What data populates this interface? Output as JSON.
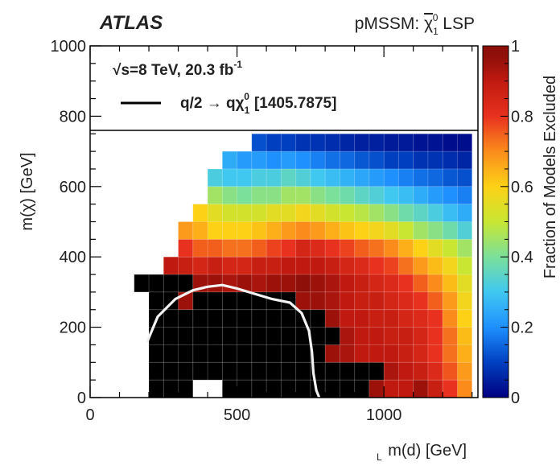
{
  "header": {
    "experiment": "ATLAS",
    "model_prefix": "pMSSM: ",
    "model_particle": "χ",
    "model_sup": "0",
    "model_sub": "1",
    "model_suffix": " LSP"
  },
  "legend": {
    "energy_line_pre": "s=8 TeV, 20.3 fb",
    "energy_line_sup": "-1",
    "curve_label": "q/2 → qχ",
    "curve_label_sup": "0",
    "curve_label_sub": "1",
    "curve_ref": "[1405.7875]"
  },
  "chart_data": {
    "type": "heatmap",
    "xlabel": "m(d) [GeV]",
    "xlabel_sub": "L",
    "ylabel": "m(χ) [GeV]",
    "ylabel_sup": "0",
    "ylabel_sub": "1",
    "zlabel": "Fraction of  Models Excluded",
    "xlim": [
      0,
      1320
    ],
    "ylim": [
      0,
      1000
    ],
    "zlim": [
      0,
      1
    ],
    "x_ticks": [
      0,
      500,
      1000
    ],
    "y_ticks": [
      0,
      200,
      400,
      600,
      800,
      1000
    ],
    "z_ticks": [
      0,
      0.2,
      0.4,
      0.6,
      0.8,
      1
    ],
    "x_bin_edges": [
      0,
      50,
      100,
      150,
      200,
      250,
      300,
      350,
      400,
      450,
      500,
      550,
      600,
      650,
      700,
      750,
      800,
      850,
      900,
      950,
      1000,
      1050,
      1100,
      1150,
      1200,
      1250,
      1300
    ],
    "y_bin_edges": [
      0,
      50,
      100,
      150,
      200,
      250,
      300,
      350,
      400,
      450,
      500,
      550,
      600,
      650,
      700,
      750
    ],
    "grid": true,
    "colormap": [
      "#000080",
      "#0040c0",
      "#1e90ff",
      "#40c8f0",
      "#7be09a",
      "#c8e632",
      "#fcd116",
      "#fb8c1c",
      "#e8311e",
      "#c01a10",
      "#780a06"
    ],
    "z": [
      [
        null,
        null,
        null,
        null,
        1,
        1,
        1,
        null,
        null,
        1,
        1,
        1,
        1,
        1,
        1,
        1,
        1,
        1,
        1,
        0.95,
        0.9,
        0.9,
        0.95,
        0.88,
        0.8,
        0.7
      ],
      [
        null,
        null,
        null,
        null,
        1,
        1,
        1,
        1,
        1,
        1,
        1,
        1,
        1,
        1,
        1,
        1,
        1,
        1,
        1,
        1,
        0.93,
        0.9,
        0.88,
        0.83,
        0.76,
        0.68
      ],
      [
        null,
        null,
        null,
        null,
        1,
        1,
        1,
        1,
        1,
        1,
        1,
        1,
        1,
        1,
        1,
        1,
        0.95,
        0.93,
        0.9,
        0.9,
        0.9,
        0.88,
        0.85,
        0.8,
        0.73,
        0.65
      ],
      [
        null,
        null,
        null,
        null,
        1,
        1,
        1,
        1,
        1,
        1,
        1,
        1,
        1,
        1,
        1,
        1,
        1,
        0.93,
        0.9,
        0.9,
        0.88,
        0.88,
        0.85,
        0.8,
        0.73,
        0.63
      ],
      [
        null,
        null,
        null,
        null,
        1,
        1,
        1,
        1,
        1,
        1,
        1,
        1,
        1,
        1,
        1,
        1,
        0.95,
        0.9,
        0.9,
        0.88,
        0.88,
        0.85,
        0.83,
        0.8,
        0.7,
        0.6
      ],
      [
        null,
        null,
        null,
        null,
        1,
        1,
        0.95,
        1,
        1,
        1,
        1,
        1,
        1,
        1,
        0.95,
        0.95,
        0.93,
        0.9,
        0.88,
        0.88,
        0.85,
        0.83,
        0.8,
        0.75,
        0.68,
        0.58
      ],
      [
        null,
        null,
        null,
        1,
        1,
        1,
        1,
        0.95,
        0.95,
        0.93,
        0.95,
        0.93,
        0.95,
        0.95,
        0.97,
        0.95,
        0.93,
        0.9,
        0.88,
        0.85,
        0.83,
        0.8,
        0.75,
        0.7,
        0.63,
        0.55
      ],
      [
        null,
        null,
        null,
        null,
        null,
        0.9,
        0.88,
        0.85,
        0.88,
        0.85,
        0.85,
        0.88,
        0.88,
        0.9,
        0.9,
        0.9,
        0.88,
        0.85,
        0.83,
        0.8,
        0.78,
        0.73,
        0.68,
        0.63,
        0.58,
        0.5
      ],
      [
        null,
        null,
        null,
        null,
        null,
        null,
        0.8,
        0.75,
        0.75,
        0.73,
        0.73,
        0.75,
        0.78,
        0.8,
        0.85,
        0.83,
        0.8,
        0.78,
        0.75,
        0.73,
        0.7,
        0.65,
        0.6,
        0.55,
        0.5,
        0.45
      ],
      [
        null,
        null,
        null,
        null,
        null,
        null,
        0.68,
        0.65,
        0.6,
        0.6,
        0.6,
        0.62,
        0.65,
        0.68,
        0.7,
        0.68,
        0.65,
        0.62,
        0.6,
        0.58,
        0.55,
        0.5,
        0.45,
        0.42,
        0.38,
        0.33
      ],
      [
        null,
        null,
        null,
        null,
        null,
        null,
        null,
        0.6,
        0.55,
        0.52,
        0.52,
        0.52,
        0.55,
        0.55,
        0.58,
        0.55,
        0.52,
        0.5,
        0.48,
        0.45,
        0.42,
        0.38,
        0.35,
        0.32,
        0.28,
        0.25
      ],
      [
        null,
        null,
        null,
        null,
        null,
        null,
        null,
        null,
        0.45,
        0.42,
        0.4,
        0.42,
        0.42,
        0.45,
        0.45,
        0.42,
        0.4,
        0.38,
        0.35,
        0.33,
        0.3,
        0.28,
        0.25,
        0.22,
        0.2,
        0.18
      ],
      [
        null,
        null,
        null,
        null,
        null,
        null,
        null,
        null,
        0.32,
        0.3,
        0.3,
        0.32,
        0.32,
        0.35,
        0.33,
        0.3,
        0.28,
        0.26,
        0.24,
        0.22,
        0.2,
        0.18,
        0.16,
        0.15,
        0.13,
        0.12
      ],
      [
        null,
        null,
        null,
        null,
        null,
        null,
        null,
        null,
        null,
        0.25,
        0.22,
        0.22,
        0.2,
        0.22,
        0.2,
        0.18,
        0.16,
        0.15,
        0.13,
        0.12,
        0.1,
        0.1,
        0.08,
        0.08,
        0.07,
        0.06
      ],
      [
        null,
        null,
        null,
        null,
        null,
        null,
        null,
        null,
        null,
        null,
        null,
        0.12,
        0.1,
        0.1,
        0.08,
        0.08,
        0.07,
        0.06,
        0.05,
        0.05,
        0.04,
        0.04,
        0.03,
        0.03,
        0.02,
        0.02
      ]
    ],
    "limit_curve": {
      "x": [
        195,
        230,
        290,
        350,
        400,
        450,
        500,
        560,
        620,
        680,
        720,
        745,
        755,
        760,
        770,
        780
      ],
      "y": [
        160,
        230,
        280,
        305,
        315,
        320,
        310,
        295,
        280,
        270,
        240,
        190,
        130,
        70,
        20,
        0
      ]
    }
  }
}
